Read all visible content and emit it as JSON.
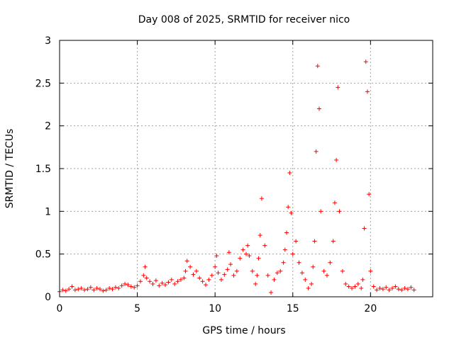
{
  "chart_data": {
    "type": "scatter",
    "title": "Day 008 of 2025, SRMTID for receiver nico",
    "xlabel": "GPS time / hours",
    "ylabel": "SRMTID / TECUs",
    "xlim": [
      0,
      24
    ],
    "ylim": [
      0,
      3
    ],
    "xticks": [
      0,
      5,
      10,
      15,
      20
    ],
    "yticks": [
      0,
      0.5,
      1,
      1.5,
      2,
      2.5,
      3
    ],
    "xtick_labels": [
      "0",
      "5",
      "10",
      "15",
      "20"
    ],
    "ytick_labels": [
      "0",
      "0.5",
      "1",
      "1.5",
      "2",
      "2.5",
      "3"
    ],
    "grid": true,
    "marker": "+",
    "color": "#ff0000",
    "series": [
      {
        "name": "SRMTID",
        "x": [
          0.0,
          0.2,
          0.4,
          0.6,
          0.8,
          1.0,
          1.2,
          1.4,
          1.6,
          1.8,
          2.0,
          2.2,
          2.4,
          2.6,
          2.8,
          3.0,
          3.2,
          3.4,
          3.6,
          3.8,
          4.0,
          4.2,
          4.4,
          4.6,
          4.8,
          5.0,
          5.2,
          5.4,
          5.5,
          5.6,
          5.8,
          6.0,
          6.2,
          6.4,
          6.6,
          6.8,
          7.0,
          7.2,
          7.4,
          7.6,
          7.8,
          8.0,
          8.1,
          8.2,
          8.4,
          8.6,
          8.8,
          9.0,
          9.2,
          9.4,
          9.6,
          9.8,
          10.0,
          10.1,
          10.2,
          10.4,
          10.6,
          10.8,
          10.9,
          11.0,
          11.2,
          11.4,
          11.6,
          11.8,
          12.0,
          12.1,
          12.2,
          12.4,
          12.6,
          12.7,
          12.8,
          12.9,
          13.0,
          13.2,
          13.4,
          13.6,
          13.8,
          14.0,
          14.2,
          14.4,
          14.5,
          14.6,
          14.7,
          14.8,
          14.9,
          15.0,
          15.2,
          15.4,
          15.6,
          15.8,
          16.0,
          16.2,
          16.3,
          16.4,
          16.5,
          16.6,
          16.7,
          16.8,
          17.0,
          17.2,
          17.4,
          17.6,
          17.7,
          17.8,
          17.9,
          18.0,
          18.2,
          18.4,
          18.6,
          18.8,
          19.0,
          19.2,
          19.4,
          19.5,
          19.6,
          19.7,
          19.8,
          19.9,
          20.0,
          20.2,
          20.4,
          20.6,
          20.8,
          21.0,
          21.2,
          21.4,
          21.6,
          21.8,
          22.0,
          22.2,
          22.4,
          22.6,
          22.8
        ],
        "y": [
          0.06,
          0.08,
          0.07,
          0.09,
          0.12,
          0.08,
          0.09,
          0.1,
          0.08,
          0.09,
          0.11,
          0.08,
          0.1,
          0.09,
          0.07,
          0.08,
          0.1,
          0.09,
          0.11,
          0.1,
          0.13,
          0.15,
          0.14,
          0.12,
          0.11,
          0.13,
          0.18,
          0.25,
          0.35,
          0.22,
          0.18,
          0.15,
          0.19,
          0.13,
          0.16,
          0.14,
          0.17,
          0.2,
          0.15,
          0.18,
          0.2,
          0.22,
          0.3,
          0.42,
          0.35,
          0.26,
          0.3,
          0.22,
          0.18,
          0.14,
          0.2,
          0.25,
          0.35,
          0.48,
          0.28,
          0.2,
          0.26,
          0.32,
          0.52,
          0.38,
          0.25,
          0.3,
          0.45,
          0.55,
          0.5,
          0.6,
          0.48,
          0.3,
          0.15,
          0.25,
          0.45,
          0.72,
          1.15,
          0.6,
          0.25,
          0.05,
          0.2,
          0.28,
          0.3,
          0.4,
          0.55,
          0.75,
          1.05,
          1.45,
          0.98,
          0.5,
          0.65,
          0.4,
          0.28,
          0.2,
          0.1,
          0.15,
          0.35,
          0.65,
          1.7,
          2.7,
          2.2,
          1.0,
          0.3,
          0.25,
          0.4,
          0.65,
          1.1,
          1.6,
          2.45,
          1.0,
          0.3,
          0.15,
          0.12,
          0.1,
          0.12,
          0.15,
          0.1,
          0.2,
          0.8,
          2.75,
          2.4,
          1.2,
          0.3,
          0.12,
          0.08,
          0.1,
          0.09,
          0.11,
          0.08,
          0.1,
          0.12,
          0.09,
          0.08,
          0.1,
          0.09,
          0.11,
          0.08
        ]
      }
    ]
  }
}
